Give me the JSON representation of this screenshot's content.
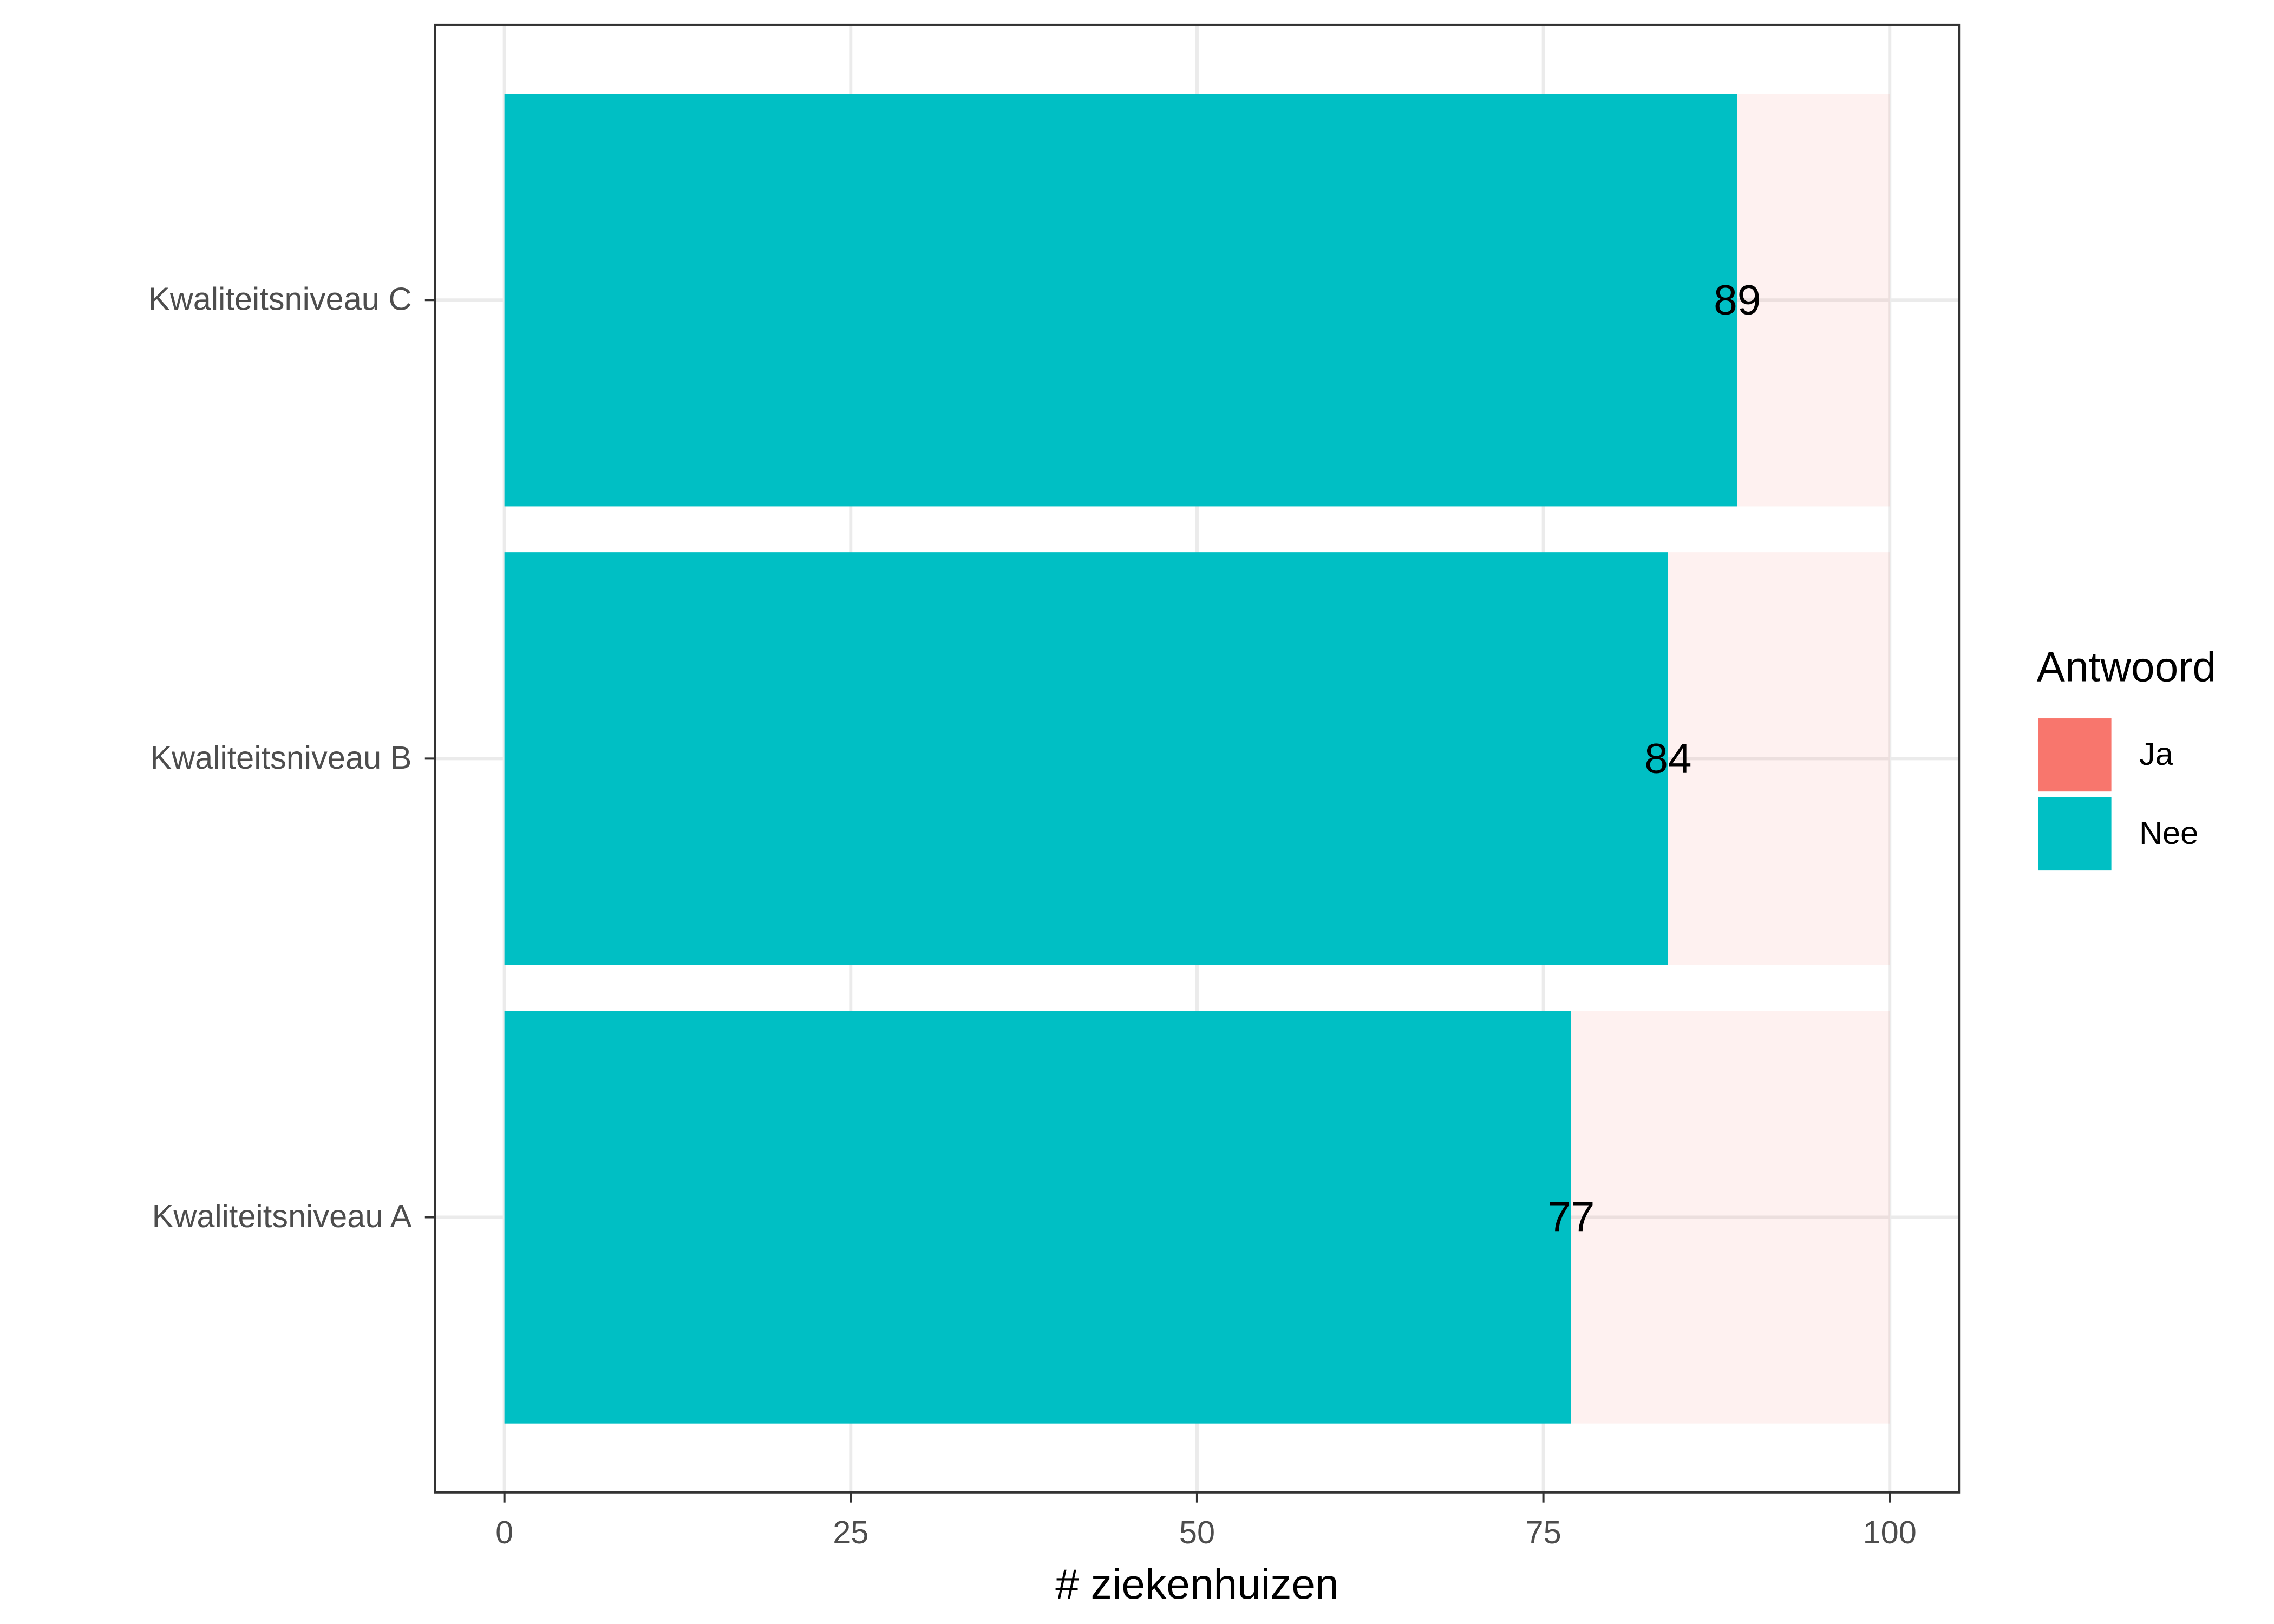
{
  "chart_data": {
    "type": "stacked_barh",
    "categories": [
      "Kwaliteitsniveau A",
      "Kwaliteitsniveau B",
      "Kwaliteitsniveau C"
    ],
    "series": [
      {
        "name": "Ja",
        "color": "#F8766D",
        "opacity": 0.1,
        "values": [
          23,
          16,
          11
        ]
      },
      {
        "name": "Nee",
        "color": "#00BFC4",
        "opacity": 1,
        "labels": true,
        "values": [
          77,
          84,
          89
        ]
      }
    ],
    "xlabel": "# ziekenhuizen",
    "legend_title": "Antwoord",
    "xlim": [
      -5,
      105
    ],
    "xticks": [
      0,
      25,
      50,
      75,
      100
    ],
    "grid": true,
    "legend": "right"
  }
}
